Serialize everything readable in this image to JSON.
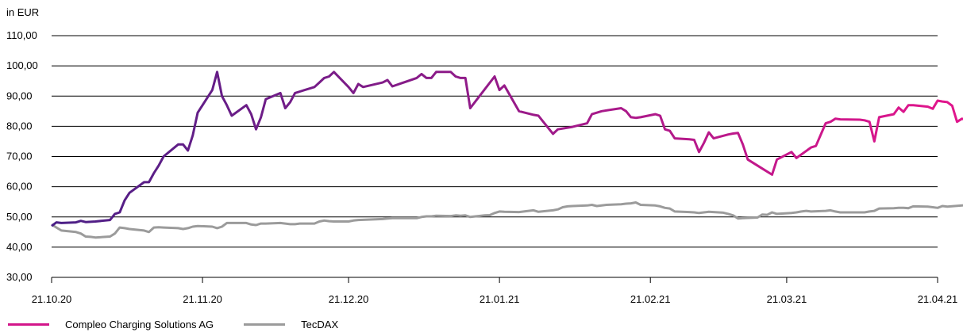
{
  "chart_data": {
    "type": "line",
    "title": "",
    "ylabel": "in EUR",
    "xlabel": "",
    "ylim": [
      30,
      110
    ],
    "yticks": [
      "30,00",
      "40,00",
      "50,00",
      "60,00",
      "70,00",
      "80,00",
      "90,00",
      "100,00",
      "110,00"
    ],
    "ytick_values": [
      30,
      40,
      50,
      60,
      70,
      80,
      90,
      100,
      110
    ],
    "xlim": [
      "2020-10-21",
      "2021-04-21"
    ],
    "xticks": [
      {
        "date": "2020-10-21",
        "label": "21.10.20"
      },
      {
        "date": "2020-11-21",
        "label": "21.11.20"
      },
      {
        "date": "2020-12-21",
        "label": "21.12.20"
      },
      {
        "date": "2021-01-21",
        "label": "21.01.21"
      },
      {
        "date": "2021-02-21",
        "label": "21.02.21"
      },
      {
        "date": "2021-03-21",
        "label": "21.03.21"
      },
      {
        "date": "2021-04-21",
        "label": "21.04.21"
      }
    ],
    "grid": "horizontal",
    "legend_position": "bottom-left",
    "series": [
      {
        "name": "Compleo Charging Solutions AG",
        "color_start": "#4a1f86",
        "color_end": "#e0168c",
        "points": [
          [
            "2020-10-21",
            47.0
          ],
          [
            "2020-10-22",
            48.2
          ],
          [
            "2020-10-23",
            48.0
          ],
          [
            "2020-10-26",
            48.2
          ],
          [
            "2020-10-27",
            48.7
          ],
          [
            "2020-10-28",
            48.3
          ],
          [
            "2020-10-29",
            48.4
          ],
          [
            "2020-10-30",
            48.5
          ],
          [
            "2020-11-02",
            49.0
          ],
          [
            "2020-11-03",
            51.0
          ],
          [
            "2020-11-04",
            51.5
          ],
          [
            "2020-11-05",
            55.5
          ],
          [
            "2020-11-06",
            58.0
          ],
          [
            "2020-11-09",
            61.5
          ],
          [
            "2020-11-10",
            61.5
          ],
          [
            "2020-11-11",
            64.5
          ],
          [
            "2020-11-12",
            67.0
          ],
          [
            "2020-11-13",
            70.0
          ],
          [
            "2020-11-16",
            74.0
          ],
          [
            "2020-11-17",
            74.0
          ],
          [
            "2020-11-18",
            72.0
          ],
          [
            "2020-11-19",
            77.0
          ],
          [
            "2020-11-20",
            84.5
          ],
          [
            "2020-11-23",
            92.0
          ],
          [
            "2020-11-24",
            98.0
          ],
          [
            "2020-11-25",
            90.0
          ],
          [
            "2020-11-26",
            87.0
          ],
          [
            "2020-11-27",
            83.5
          ],
          [
            "2020-11-30",
            87.0
          ],
          [
            "2020-12-01",
            84.0
          ],
          [
            "2020-12-02",
            79.0
          ],
          [
            "2020-12-03",
            83.0
          ],
          [
            "2020-12-04",
            89.0
          ],
          [
            "2020-12-07",
            91.0
          ],
          [
            "2020-12-08",
            86.0
          ],
          [
            "2020-12-09",
            88.0
          ],
          [
            "2020-12-10",
            91.0
          ],
          [
            "2020-12-11",
            91.5
          ],
          [
            "2020-12-14",
            93.0
          ],
          [
            "2020-12-15",
            94.5
          ],
          [
            "2020-12-16",
            96.0
          ],
          [
            "2020-12-17",
            96.5
          ],
          [
            "2020-12-18",
            98.0
          ],
          [
            "2020-12-21",
            93.0
          ],
          [
            "2020-12-22",
            91.0
          ],
          [
            "2020-12-23",
            94.0
          ],
          [
            "2020-12-24",
            93.0
          ],
          [
            "2020-12-28",
            94.5
          ],
          [
            "2020-12-29",
            95.3
          ],
          [
            "2020-12-30",
            93.2
          ],
          [
            "2021-01-04",
            96.0
          ],
          [
            "2021-01-05",
            97.3
          ],
          [
            "2021-01-06",
            96.0
          ],
          [
            "2021-01-07",
            96.0
          ],
          [
            "2021-01-08",
            98.0
          ],
          [
            "2021-01-11",
            98.0
          ],
          [
            "2021-01-12",
            96.5
          ],
          [
            "2021-01-13",
            96.0
          ],
          [
            "2021-01-14",
            96.0
          ],
          [
            "2021-01-15",
            86.0
          ],
          [
            "2021-01-20",
            96.5
          ],
          [
            "2021-01-21",
            92.0
          ],
          [
            "2021-01-22",
            93.5
          ],
          [
            "2021-01-25",
            85.0
          ],
          [
            "2021-01-28",
            83.8
          ],
          [
            "2021-01-29",
            83.5
          ],
          [
            "2021-01-30",
            81.5
          ],
          [
            "2021-02-01",
            77.5
          ],
          [
            "2021-02-02",
            79.0
          ],
          [
            "2021-02-05",
            79.8
          ],
          [
            "2021-02-08",
            81.0
          ],
          [
            "2021-02-09",
            84.0
          ],
          [
            "2021-02-11",
            85.0
          ],
          [
            "2021-02-15",
            86.0
          ],
          [
            "2021-02-16",
            85.0
          ],
          [
            "2021-02-17",
            83.0
          ],
          [
            "2021-02-18",
            82.8
          ],
          [
            "2021-02-19",
            83.0
          ],
          [
            "2021-02-22",
            84.0
          ],
          [
            "2021-02-23",
            83.5
          ],
          [
            "2021-02-24",
            79.0
          ],
          [
            "2021-02-25",
            78.5
          ],
          [
            "2021-02-26",
            76.0
          ],
          [
            "2021-03-01",
            75.7
          ],
          [
            "2021-03-02",
            75.5
          ],
          [
            "2021-03-03",
            71.5
          ],
          [
            "2021-03-04",
            74.5
          ],
          [
            "2021-03-05",
            78.0
          ],
          [
            "2021-03-06",
            76.0
          ],
          [
            "2021-03-09",
            77.3
          ],
          [
            "2021-03-10",
            77.6
          ],
          [
            "2021-03-11",
            77.8
          ],
          [
            "2021-03-12",
            74.0
          ],
          [
            "2021-03-13",
            69.0
          ],
          [
            "2021-03-16",
            66.0
          ],
          [
            "2021-03-18",
            64.0
          ],
          [
            "2021-03-19",
            69.0
          ],
          [
            "2021-03-22",
            71.5
          ],
          [
            "2021-03-23",
            69.5
          ],
          [
            "2021-03-26",
            73.0
          ],
          [
            "2021-03-27",
            73.5
          ],
          [
            "2021-03-29",
            81.0
          ],
          [
            "2021-03-30",
            81.5
          ],
          [
            "2021-03-31",
            82.5
          ],
          [
            "2021-04-01",
            82.3
          ],
          [
            "2021-04-05",
            82.2
          ],
          [
            "2021-04-06",
            82.0
          ],
          [
            "2021-04-07",
            81.5
          ],
          [
            "2021-04-08",
            75.0
          ],
          [
            "2021-04-09",
            83.0
          ],
          [
            "2021-04-12",
            84.0
          ],
          [
            "2021-04-13",
            86.2
          ],
          [
            "2021-04-14",
            84.8
          ],
          [
            "2021-04-15",
            87.0
          ],
          [
            "2021-04-16",
            87.0
          ],
          [
            "2021-04-19",
            86.5
          ],
          [
            "2021-04-20",
            85.8
          ],
          [
            "2021-04-21",
            88.5
          ],
          [
            "2021-04-22",
            88.2
          ],
          [
            "2021-04-23",
            88.0
          ],
          [
            "2021-04-24",
            86.8
          ],
          [
            "2021-04-25",
            81.5
          ],
          [
            "2021-04-26",
            82.5
          ],
          [
            "2021-04-27",
            82.0
          ],
          [
            "2021-04-28",
            81.5
          ],
          [
            "2021-04-29",
            76.5
          ],
          [
            "2021-04-30",
            76.8
          ]
        ]
      },
      {
        "name": "TecDAX",
        "color": "#9b9b9b",
        "points": [
          [
            "2020-10-21",
            47.5
          ],
          [
            "2020-10-22",
            46.5
          ],
          [
            "2020-10-23",
            45.5
          ],
          [
            "2020-10-26",
            45.0
          ],
          [
            "2020-10-27",
            44.5
          ],
          [
            "2020-10-28",
            43.5
          ],
          [
            "2020-10-29",
            43.4
          ],
          [
            "2020-10-30",
            43.2
          ],
          [
            "2020-11-02",
            43.5
          ],
          [
            "2020-11-03",
            44.5
          ],
          [
            "2020-11-04",
            46.5
          ],
          [
            "2020-11-05",
            46.3
          ],
          [
            "2020-11-06",
            46.0
          ],
          [
            "2020-11-09",
            45.5
          ],
          [
            "2020-11-10",
            45.0
          ],
          [
            "2020-11-11",
            46.5
          ],
          [
            "2020-11-12",
            46.6
          ],
          [
            "2020-11-13",
            46.5
          ],
          [
            "2020-11-16",
            46.3
          ],
          [
            "2020-11-17",
            46.0
          ],
          [
            "2020-11-18",
            46.3
          ],
          [
            "2020-11-19",
            46.8
          ],
          [
            "2020-11-20",
            47.0
          ],
          [
            "2020-11-23",
            46.8
          ],
          [
            "2020-11-24",
            46.3
          ],
          [
            "2020-11-25",
            46.8
          ],
          [
            "2020-11-26",
            48.0
          ],
          [
            "2020-11-27",
            48.0
          ],
          [
            "2020-11-30",
            48.0
          ],
          [
            "2020-12-01",
            47.5
          ],
          [
            "2020-12-02",
            47.3
          ],
          [
            "2020-12-03",
            47.8
          ],
          [
            "2020-12-04",
            47.8
          ],
          [
            "2020-12-07",
            48.0
          ],
          [
            "2020-12-08",
            47.8
          ],
          [
            "2020-12-09",
            47.6
          ],
          [
            "2020-12-10",
            47.6
          ],
          [
            "2020-12-11",
            47.8
          ],
          [
            "2020-12-14",
            47.8
          ],
          [
            "2020-12-15",
            48.5
          ],
          [
            "2020-12-16",
            48.8
          ],
          [
            "2020-12-17",
            48.6
          ],
          [
            "2020-12-18",
            48.5
          ],
          [
            "2020-12-21",
            48.5
          ],
          [
            "2020-12-22",
            48.8
          ],
          [
            "2020-12-23",
            49.0
          ],
          [
            "2020-12-28",
            49.3
          ],
          [
            "2020-12-29",
            49.5
          ],
          [
            "2020-12-30",
            49.6
          ],
          [
            "2021-01-04",
            49.6
          ],
          [
            "2021-01-05",
            50.0
          ],
          [
            "2021-01-06",
            50.2
          ],
          [
            "2021-01-07",
            50.2
          ],
          [
            "2021-01-08",
            50.4
          ],
          [
            "2021-01-11",
            50.3
          ],
          [
            "2021-01-12",
            50.5
          ],
          [
            "2021-01-13",
            50.4
          ],
          [
            "2021-01-14",
            50.5
          ],
          [
            "2021-01-15",
            50.0
          ],
          [
            "2021-01-18",
            50.5
          ],
          [
            "2021-01-19",
            50.6
          ],
          [
            "2021-01-20",
            51.3
          ],
          [
            "2021-01-21",
            51.8
          ],
          [
            "2021-01-22",
            51.7
          ],
          [
            "2021-01-25",
            51.6
          ],
          [
            "2021-01-26",
            51.8
          ],
          [
            "2021-01-27",
            52.0
          ],
          [
            "2021-01-28",
            52.2
          ],
          [
            "2021-01-29",
            51.7
          ],
          [
            "2021-02-01",
            52.2
          ],
          [
            "2021-02-02",
            52.5
          ],
          [
            "2021-02-03",
            53.2
          ],
          [
            "2021-02-04",
            53.5
          ],
          [
            "2021-02-05",
            53.6
          ],
          [
            "2021-02-08",
            53.8
          ],
          [
            "2021-02-09",
            54.0
          ],
          [
            "2021-02-10",
            53.6
          ],
          [
            "2021-02-11",
            53.8
          ],
          [
            "2021-02-12",
            54.0
          ],
          [
            "2021-02-15",
            54.2
          ],
          [
            "2021-02-16",
            54.4
          ],
          [
            "2021-02-17",
            54.5
          ],
          [
            "2021-02-18",
            54.8
          ],
          [
            "2021-02-19",
            54.0
          ],
          [
            "2021-02-22",
            53.8
          ],
          [
            "2021-02-23",
            53.5
          ],
          [
            "2021-02-24",
            53.0
          ],
          [
            "2021-02-25",
            52.8
          ],
          [
            "2021-02-26",
            51.8
          ],
          [
            "2021-03-01",
            51.6
          ],
          [
            "2021-03-02",
            51.5
          ],
          [
            "2021-03-03",
            51.3
          ],
          [
            "2021-03-04",
            51.5
          ],
          [
            "2021-03-05",
            51.7
          ],
          [
            "2021-03-08",
            51.4
          ],
          [
            "2021-03-09",
            51.0
          ],
          [
            "2021-03-10",
            50.5
          ],
          [
            "2021-03-11",
            49.5
          ],
          [
            "2021-03-12",
            49.6
          ],
          [
            "2021-03-15",
            49.8
          ],
          [
            "2021-03-16",
            50.8
          ],
          [
            "2021-03-17",
            50.7
          ],
          [
            "2021-03-18",
            51.5
          ],
          [
            "2021-03-19",
            51.0
          ],
          [
            "2021-03-22",
            51.3
          ],
          [
            "2021-03-23",
            51.5
          ],
          [
            "2021-03-24",
            51.8
          ],
          [
            "2021-03-25",
            52.0
          ],
          [
            "2021-03-26",
            51.8
          ],
          [
            "2021-03-29",
            52.0
          ],
          [
            "2021-03-30",
            52.2
          ],
          [
            "2021-03-31",
            51.8
          ],
          [
            "2021-04-01",
            51.5
          ],
          [
            "2021-04-06",
            51.5
          ],
          [
            "2021-04-07",
            51.8
          ],
          [
            "2021-04-08",
            52.0
          ],
          [
            "2021-04-09",
            52.8
          ],
          [
            "2021-04-12",
            52.9
          ],
          [
            "2021-04-13",
            53.0
          ],
          [
            "2021-04-14",
            53.0
          ],
          [
            "2021-04-15",
            52.9
          ],
          [
            "2021-04-16",
            53.5
          ],
          [
            "2021-04-19",
            53.4
          ],
          [
            "2021-04-20",
            53.2
          ],
          [
            "2021-04-21",
            53.0
          ],
          [
            "2021-04-22",
            53.6
          ],
          [
            "2021-04-23",
            53.4
          ],
          [
            "2021-04-26",
            53.8
          ],
          [
            "2021-04-27",
            54.0
          ],
          [
            "2021-04-28",
            53.7
          ],
          [
            "2021-04-29",
            53.2
          ],
          [
            "2021-04-30",
            53.5
          ]
        ]
      }
    ]
  },
  "legend": {
    "items": [
      {
        "label": "Compleo Charging Solutions AG",
        "color": "#d3168a"
      },
      {
        "label": "TecDAX",
        "color": "#9b9b9b"
      }
    ]
  }
}
